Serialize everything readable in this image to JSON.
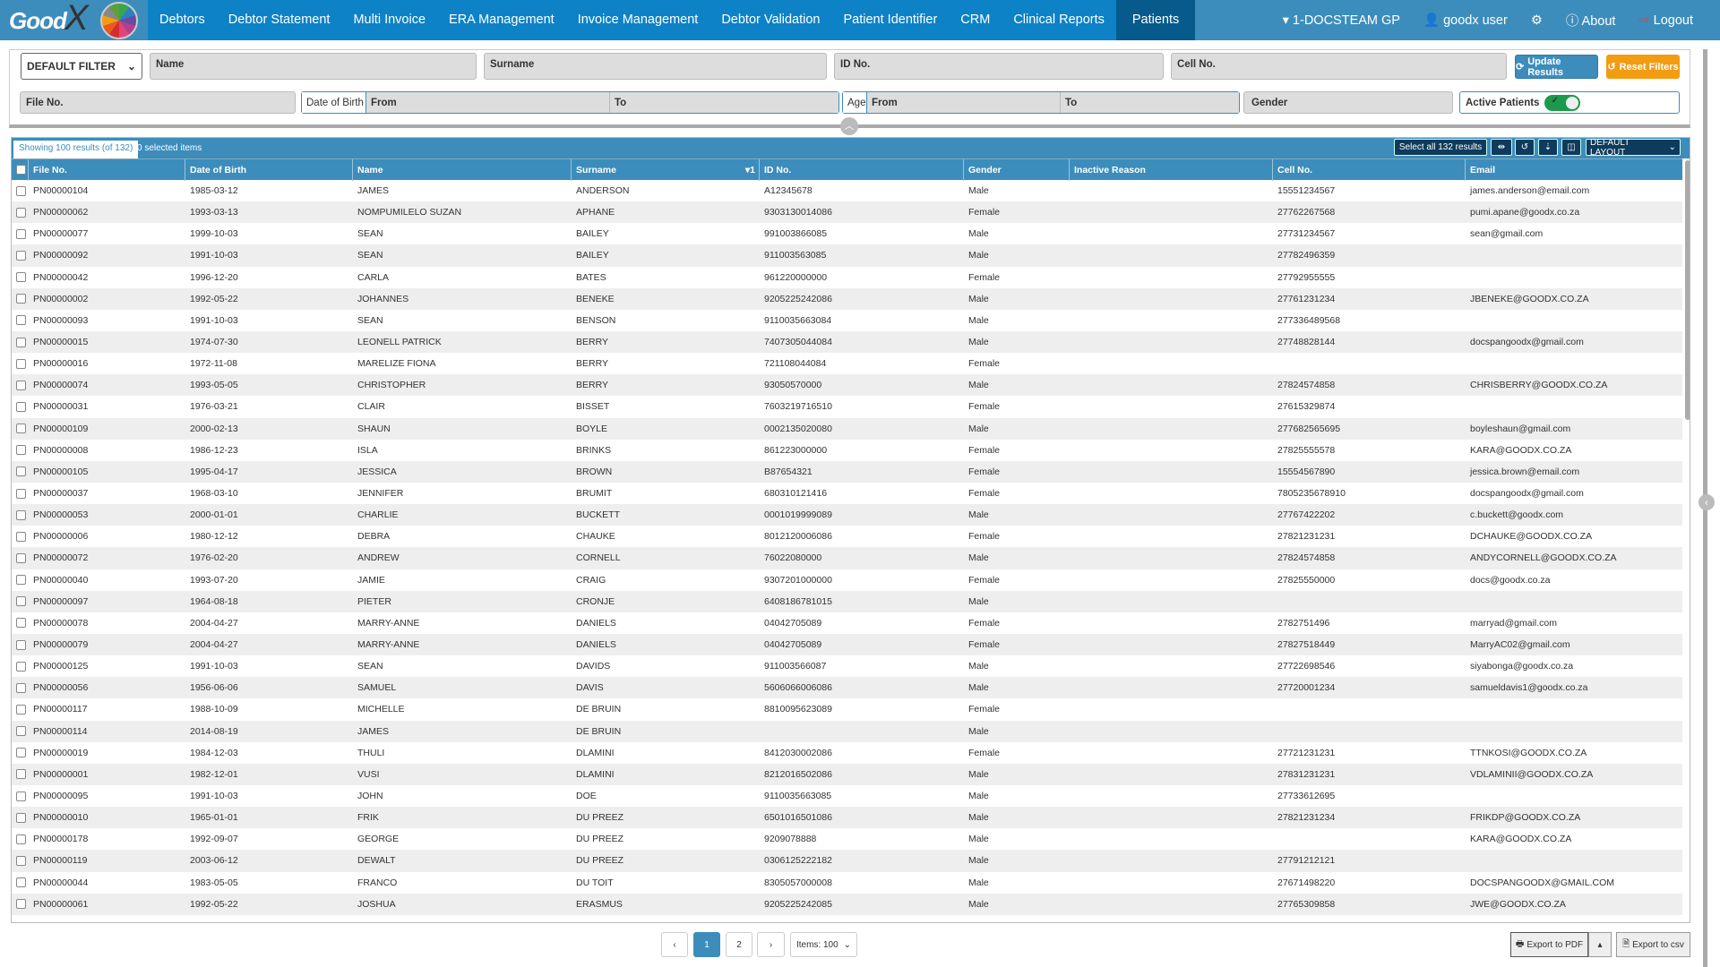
{
  "app": {
    "logo_text": "GoodX"
  },
  "nav": {
    "items": [
      "Debtors",
      "Debtor Statement",
      "Multi Invoice",
      "ERA Management",
      "Invoice Management",
      "Debtor Validation",
      "Patient Identifier",
      "CRM",
      "Clinical Reports",
      "Patients"
    ],
    "active": "Patients",
    "practice": "1-DOCSTEAM GP",
    "user": "goodx user",
    "about": "About",
    "logout": "Logout"
  },
  "filters": {
    "filter_select": "DEFAULT FILTER",
    "name": "Name",
    "surname": "Surname",
    "id_no": "ID No.",
    "cell_no": "Cell No.",
    "update_results": "Update Results",
    "reset_filters": "Reset Filters",
    "file_no": "File No.",
    "dob_label": "Date of Birth",
    "dob_from": "From",
    "dob_to": "To",
    "age_label": "Age",
    "age_from": "From",
    "age_to": "To",
    "gender": "Gender",
    "active_patients": "Active Patients",
    "active_patients_on": true
  },
  "grid": {
    "showing": "Showing 100 results (of 132)",
    "selected": "0 selected items",
    "select_all": "Select all 132 results",
    "layout": "DEFAULT LAYOUT",
    "sort_indicator": "1",
    "columns": [
      "File No.",
      "Date of Birth",
      "Name",
      "Surname",
      "ID No.",
      "Gender",
      "Inactive Reason",
      "Cell No.",
      "Email"
    ],
    "rows": [
      [
        "PN00000104",
        "1985-03-12",
        "JAMES",
        "ANDERSON",
        "A12345678",
        "Male",
        "",
        "15551234567",
        "james.anderson@email.com"
      ],
      [
        "PN00000062",
        "1993-03-13",
        "NOMPUMILELO SUZAN",
        "APHANE",
        "9303130014086",
        "Female",
        "",
        "27762267568",
        "pumi.apane@goodx.co.za"
      ],
      [
        "PN00000077",
        "1999-10-03",
        "SEAN",
        "BAILEY",
        "991003866085",
        "Male",
        "",
        "27731234567",
        "sean@gmail.com"
      ],
      [
        "PN00000092",
        "1991-10-03",
        "SEAN",
        "BAILEY",
        "911003563085",
        "Male",
        "",
        "27782496359",
        ""
      ],
      [
        "PN00000042",
        "1996-12-20",
        "CARLA",
        "BATES",
        "961220000000",
        "Female",
        "",
        "27792955555",
        ""
      ],
      [
        "PN00000002",
        "1992-05-22",
        "JOHANNES",
        "BENEKE",
        "9205225242086",
        "Male",
        "",
        "27761231234",
        "JBENEKE@GOODX.CO.ZA"
      ],
      [
        "PN00000093",
        "1991-10-03",
        "SEAN",
        "BENSON",
        "9110035663084",
        "Male",
        "",
        "277336489568",
        ""
      ],
      [
        "PN00000015",
        "1974-07-30",
        "LEONELL PATRICK",
        "BERRY",
        "7407305044084",
        "Male",
        "",
        "27748828144",
        "docspangoodx@gmail.com"
      ],
      [
        "PN00000016",
        "1972-11-08",
        "MARELIZE FIONA",
        "BERRY",
        "721108044084",
        "Female",
        "",
        "",
        ""
      ],
      [
        "PN00000074",
        "1993-05-05",
        "CHRISTOPHER",
        "BERRY",
        "93050570000",
        "Male",
        "",
        "27824574858",
        "CHRISBERRY@GOODX.CO.ZA"
      ],
      [
        "PN00000031",
        "1976-03-21",
        "CLAIR",
        "BISSET",
        "7603219716510",
        "Female",
        "",
        "27615329874",
        ""
      ],
      [
        "PN00000109",
        "2000-02-13",
        "SHAUN",
        "BOYLE",
        "0002135020080",
        "Male",
        "",
        "277682565695",
        "boyleshaun@gmail.com"
      ],
      [
        "PN00000008",
        "1986-12-23",
        "ISLA",
        "BRINKS",
        "861223000000",
        "Female",
        "",
        "27825555578",
        "KARA@GOODX.CO.ZA"
      ],
      [
        "PN00000105",
        "1995-04-17",
        "JESSICA",
        "BROWN",
        "B87654321",
        "Female",
        "",
        "15554567890",
        "jessica.brown@email.com"
      ],
      [
        "PN00000037",
        "1968-03-10",
        "JENNIFER",
        "BRUMIT",
        "680310121416",
        "Female",
        "",
        "7805235678910",
        "docspangoodx@gmail.com"
      ],
      [
        "PN00000053",
        "2000-01-01",
        "CHARLIE",
        "BUCKETT",
        "0001019999089",
        "Male",
        "",
        "27767422202",
        "c.buckett@goodx.com"
      ],
      [
        "PN00000006",
        "1980-12-12",
        "DEBRA",
        "CHAUKE",
        "8012120006086",
        "Female",
        "",
        "27821231231",
        "DCHAUKE@GOODX.CO.ZA"
      ],
      [
        "PN00000072",
        "1976-02-20",
        "ANDREW",
        "CORNELL",
        "76022080000",
        "Male",
        "",
        "27824574858",
        "ANDYCORNELL@GOODX.CO.ZA"
      ],
      [
        "PN00000040",
        "1993-07-20",
        "JAMIE",
        "CRAIG",
        "9307201000000",
        "Female",
        "",
        "27825550000",
        "docs@goodx.co.za"
      ],
      [
        "PN00000097",
        "1964-08-18",
        "PIETER",
        "CRONJE",
        "6408186781015",
        "Male",
        "",
        "",
        ""
      ],
      [
        "PN00000078",
        "2004-04-27",
        "MARRY-ANNE",
        "DANIELS",
        "04042705089",
        "Female",
        "",
        "2782751496",
        "marryad@gmail.com"
      ],
      [
        "PN00000079",
        "2004-04-27",
        "MARRY-ANNE",
        "DANIELS",
        "04042705089",
        "Female",
        "",
        "27827518449",
        "MarryAC02@gmail.com"
      ],
      [
        "PN00000125",
        "1991-10-03",
        "SEAN",
        "DAVIDS",
        "911003566087",
        "Male",
        "",
        "27722698546",
        "siyabonga@goodx.co.za"
      ],
      [
        "PN00000056",
        "1956-06-06",
        "SAMUEL",
        "DAVIS",
        "5606066006086",
        "Male",
        "",
        "27720001234",
        "samueldavis1@goodx.co.za"
      ],
      [
        "PN00000117",
        "1988-10-09",
        "MICHELLE",
        "DE BRUIN",
        "8810095623089",
        "Female",
        "",
        "",
        ""
      ],
      [
        "PN00000114",
        "2014-08-19",
        "JAMES",
        "DE BRUIN",
        "",
        "Male",
        "",
        "",
        ""
      ],
      [
        "PN00000019",
        "1984-12-03",
        "THULI",
        "DLAMINI",
        "8412030002086",
        "Female",
        "",
        "27721231231",
        "TTNKOSI@GOODX.CO.ZA"
      ],
      [
        "PN00000001",
        "1982-12-01",
        "VUSI",
        "DLAMINI",
        "8212016502086",
        "Male",
        "",
        "27831231231",
        "VDLAMINII@GOODX.CO.ZA"
      ],
      [
        "PN00000095",
        "1991-10-03",
        "JOHN",
        "DOE",
        "9110035663085",
        "Male",
        "",
        "27733612695",
        ""
      ],
      [
        "PN00000010",
        "1965-01-01",
        "FRIK",
        "DU PREEZ",
        "6501016501086",
        "Male",
        "",
        "27821231234",
        "FRIKDP@GOODX.CO.ZA"
      ],
      [
        "PN00000178",
        "1992-09-07",
        "GEORGE",
        "DU PREEZ",
        "9209078888",
        "Male",
        "",
        "",
        "KARA@GOODX.CO.ZA"
      ],
      [
        "PN00000119",
        "2003-06-12",
        "DEWALT",
        "DU PREEZ",
        "0306125222182",
        "Male",
        "",
        "27791212121",
        ""
      ],
      [
        "PN00000044",
        "1983-05-05",
        "FRANCO",
        "DU TOIT",
        "8305057000008",
        "Male",
        "",
        "27671498220",
        "DOCSPANGOODX@GMAIL.COM"
      ],
      [
        "PN00000061",
        "1992-05-22",
        "JOSHUA",
        "ERASMUS",
        "9205225242085",
        "Male",
        "",
        "27765309858",
        "JWE@GOODX.CO.ZA"
      ]
    ]
  },
  "footer": {
    "pages": [
      "1",
      "2"
    ],
    "current_page": "1",
    "items_per_page": "Items: 100",
    "export_pdf": "Export to PDF",
    "export_csv": "Export to csv"
  },
  "colors": {
    "primary": "#3c8dbc",
    "nav": "#0d82c6",
    "nav_active": "#075a8c",
    "reset": "#f39c12",
    "toggle_on": "#1a9a4a"
  }
}
